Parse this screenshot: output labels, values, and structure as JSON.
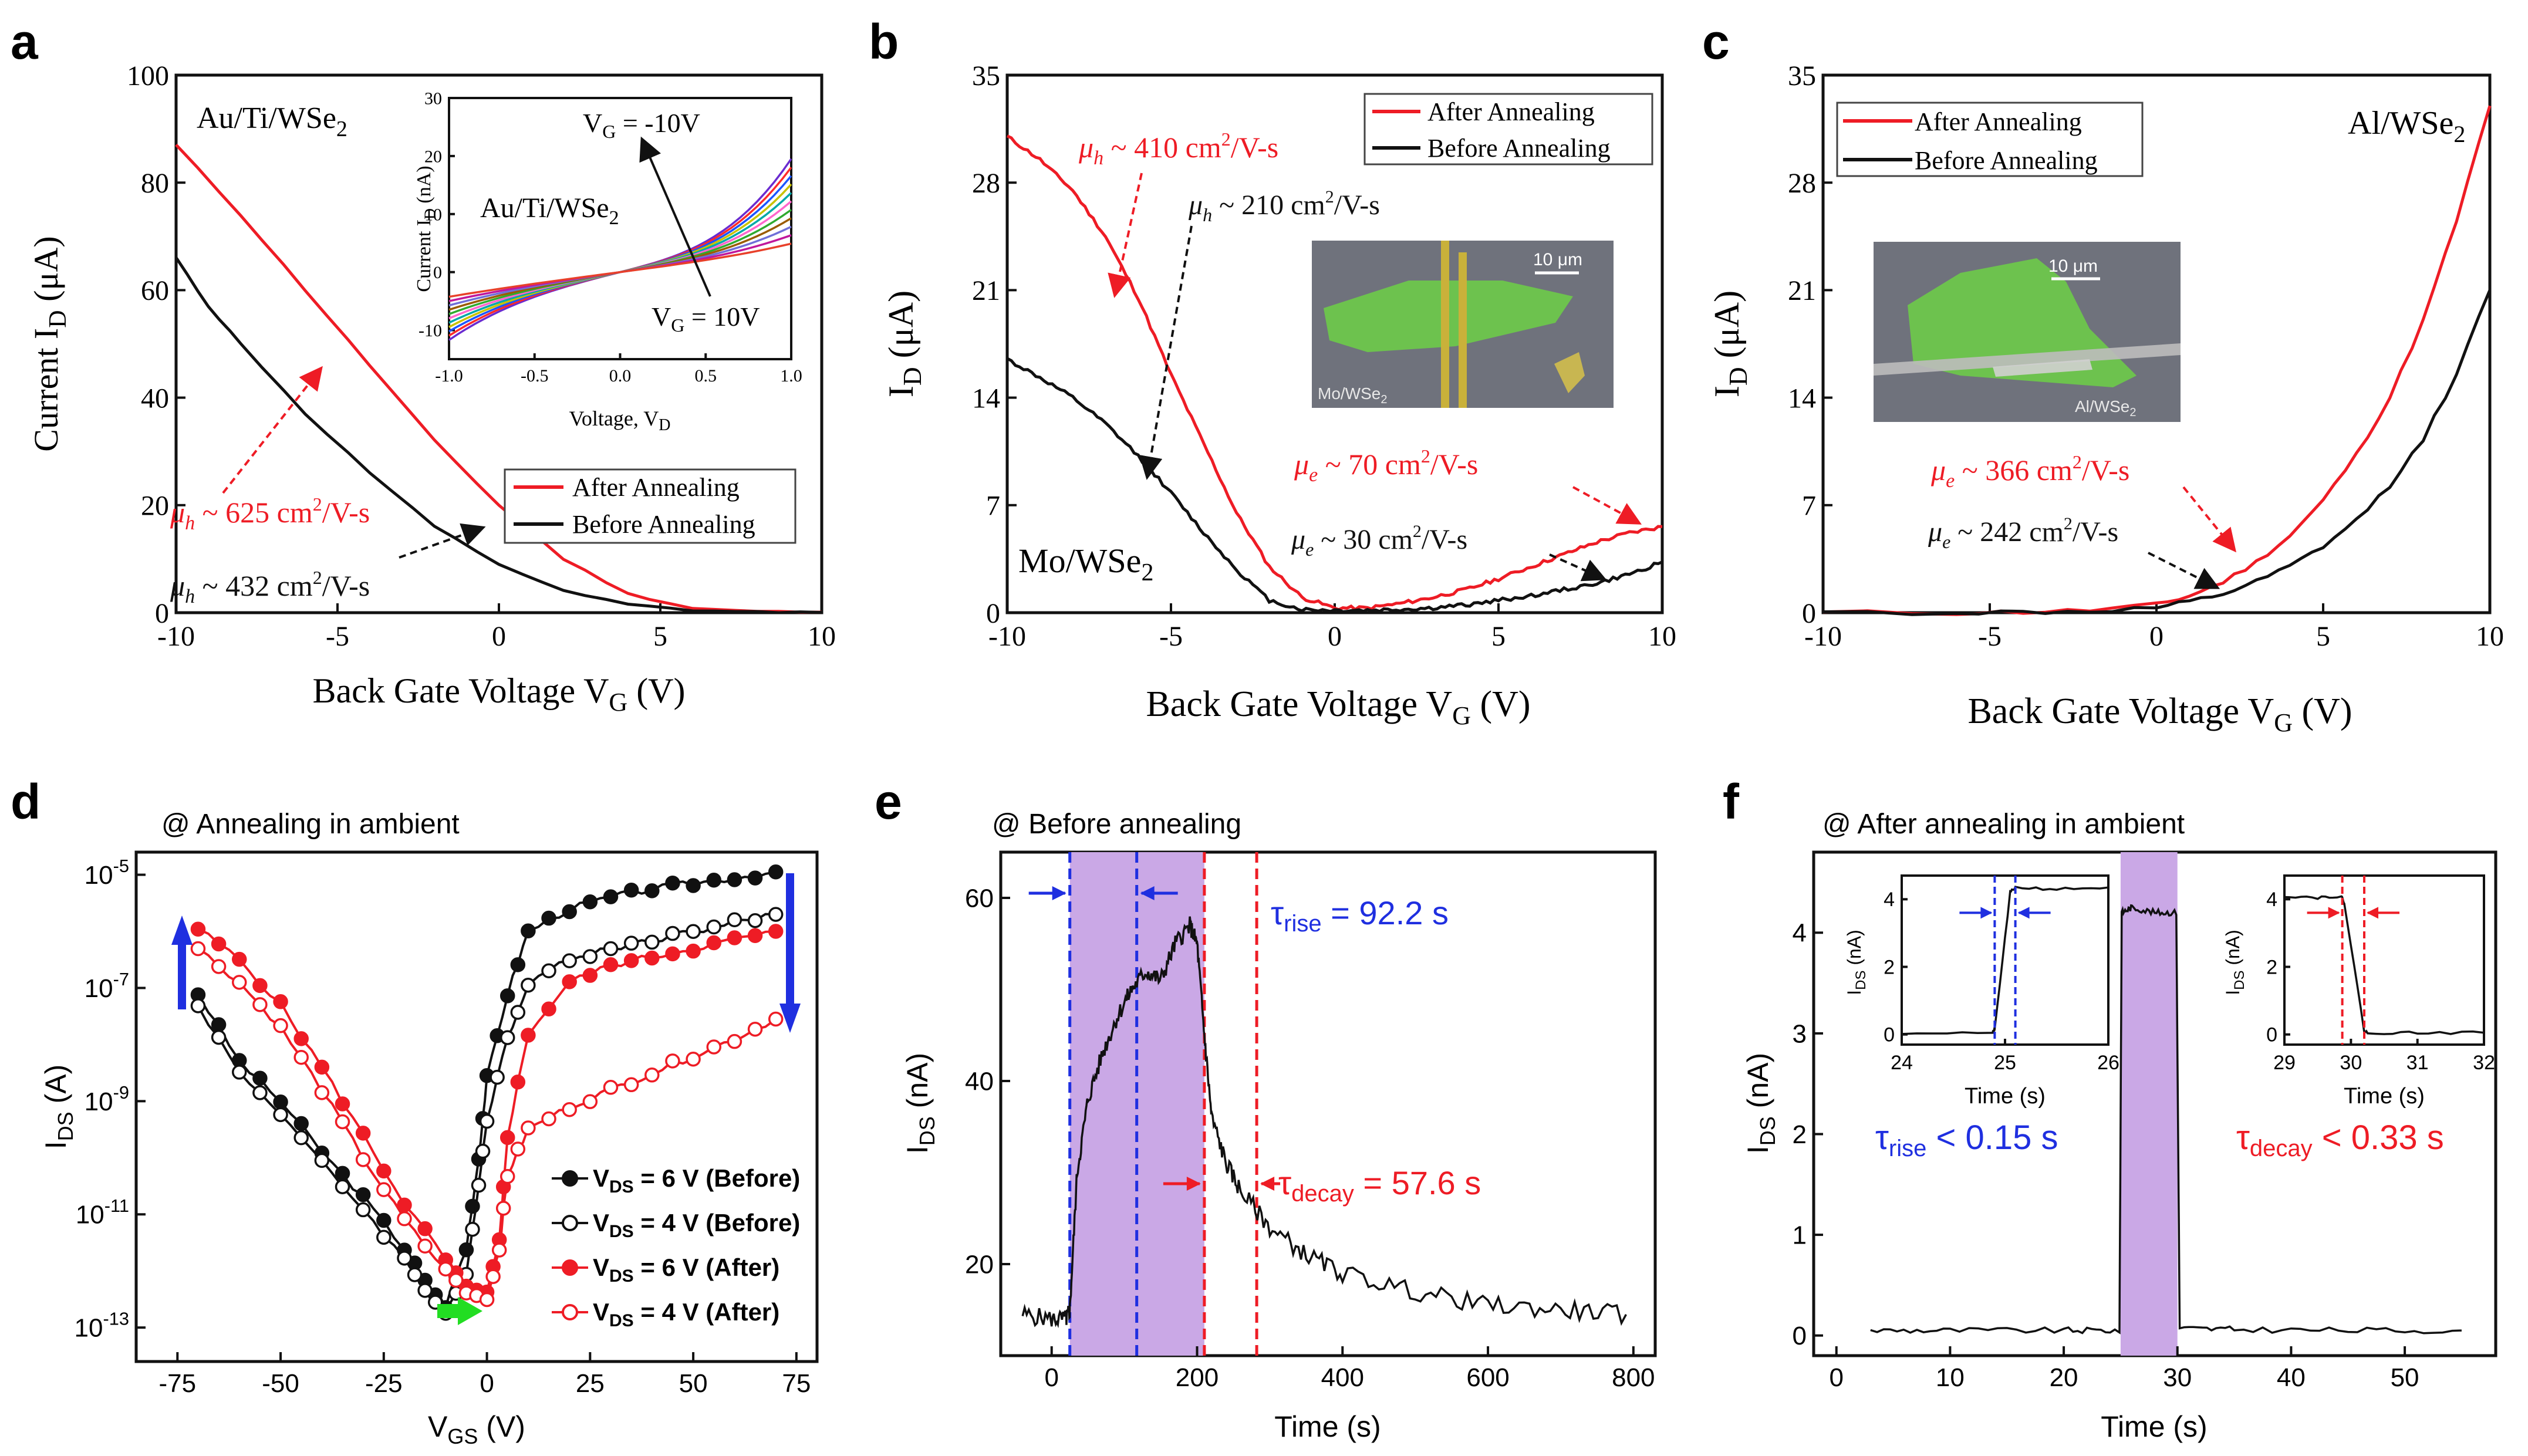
{
  "figure_caption": "",
  "colors": {
    "red": "#ee1c25",
    "black": "#111111",
    "blue": "#1f2fe0",
    "green": "#22dd22",
    "shade": "#caa8e6",
    "micro_bg": "#6f727c",
    "flake": "#6cc94a",
    "electrode": "#c9b13a",
    "electrode_al": "#bdbdbd"
  },
  "panels": {
    "a": {
      "letter": "a",
      "label_material": "Au/Ti/WSe",
      "label_sub": "2",
      "ylabel_main": "Current I",
      "ylabel_sub": "D",
      "ylabel_unit": " (μA)",
      "xlabel_main": "Back Gate Voltage V",
      "xlabel_sub": "G",
      "xlabel_unit": " (V)",
      "legend": [
        "After Annealing",
        "Before Annealing"
      ],
      "mu_after": "μ",
      "mu_after_sub": "h",
      "mu_after_val": " ~ 625 cm",
      "mu_after_sup": "2",
      "mu_after_end": "/V-s",
      "mu_before": "μ",
      "mu_before_sub": "h",
      "mu_before_val": " ~ 432 cm",
      "mu_before_sup": "2",
      "mu_before_end": "/V-s",
      "inset": {
        "ylabel": "Current I",
        "ylabel_sub": "D",
        "ylabel_unit": " (nA)",
        "xlabel": "Voltage, V",
        "xlabel_sub": "D",
        "label_material": "Au/Ti/WSe",
        "label_sub": "2",
        "vg_top": "V",
        "vg_top_sub": "G",
        "vg_top_val": " = -10V",
        "vg_bot": "V",
        "vg_bot_sub": "G",
        "vg_bot_val": " = 10V"
      }
    },
    "b": {
      "letter": "b",
      "label_material": "Mo/WSe",
      "label_sub": "2",
      "ylabel_main": "I",
      "ylabel_sub": "D",
      "ylabel_unit": " (μA)",
      "xlabel_main": "Back Gate Voltage V",
      "xlabel_sub": "G",
      "xlabel_unit": " (V)",
      "legend": [
        "After Annealing",
        "Before Annealing"
      ],
      "mu_h_after": "μ",
      "mu_h_after_sub": "h",
      "mu_h_after_val": " ~ 410 cm",
      "mu_h_after_sup": "2",
      "mu_h_after_end": "/V-s",
      "mu_h_before": "μ",
      "mu_h_before_sub": "h",
      "mu_h_before_val": " ~ 210 cm",
      "mu_h_before_sup": "2",
      "mu_h_before_end": "/V-s",
      "mu_e_after": "μ",
      "mu_e_after_sub": "e",
      "mu_e_after_val": " ~ 70 cm",
      "mu_e_after_sup": "2",
      "mu_e_after_end": "/V-s",
      "mu_e_before": "μ",
      "mu_e_before_sub": "e",
      "mu_e_before_val": " ~ 30 cm",
      "mu_e_before_sup": "2",
      "mu_e_before_end": "/V-s",
      "micro_scale": "10 μm",
      "micro_label": "Mo/WSe",
      "micro_label_sub": "2"
    },
    "c": {
      "letter": "c",
      "label_material": "Al/WSe",
      "label_sub": "2",
      "ylabel_main": "I",
      "ylabel_sub": "D",
      "ylabel_unit": " (μA)",
      "xlabel_main": "Back Gate Voltage V",
      "xlabel_sub": "G",
      "xlabel_unit": " (V)",
      "legend": [
        "After Annealing",
        "Before Annealing"
      ],
      "mu_after": "μ",
      "mu_after_sub": "e",
      "mu_after_val": " ~ 366 cm",
      "mu_after_sup": "2",
      "mu_after_end": "/V-s",
      "mu_before": "μ",
      "mu_before_sub": "e",
      "mu_before_val": " ~ 242 cm",
      "mu_before_sup": "2",
      "mu_before_end": "/V-s",
      "micro_scale": "10 μm",
      "micro_label": "Al/WSe",
      "micro_label_sub": "2"
    },
    "d": {
      "letter": "d",
      "title": "@ Annealing in ambient",
      "ylabel_main": "I",
      "ylabel_sub": "DS",
      "ylabel_unit": " (A)",
      "xlabel_main": "V",
      "xlabel_sub": "GS",
      "xlabel_unit": " (V)",
      "legend": [
        {
          "pre": "V",
          "sub": "DS",
          "post": " = 6 V (Before)"
        },
        {
          "pre": "V",
          "sub": "DS",
          "post": " = 4 V (Before)"
        },
        {
          "pre": "V",
          "sub": "DS",
          "post": " = 6 V (After)"
        },
        {
          "pre": "V",
          "sub": "DS",
          "post": " = 4 V (After)"
        }
      ]
    },
    "e": {
      "letter": "e",
      "title": "@ Before annealing",
      "ylabel_main": "I",
      "ylabel_sub": "DS",
      "ylabel_unit": " (nA)",
      "xlabel": "Time (s)",
      "tau_rise": "τ",
      "tau_rise_sub": "rise",
      "tau_rise_val": " = 92.2 s",
      "tau_decay": "τ",
      "tau_decay_sub": "decay",
      "tau_decay_val": " = 57.6 s"
    },
    "f": {
      "letter": "f",
      "title": "@ After annealing in ambient",
      "ylabel_main": "I",
      "ylabel_sub": "DS",
      "ylabel_unit": " (nA)",
      "xlabel": "Time (s)",
      "tau_rise": "τ",
      "tau_rise_sub": "rise",
      "tau_rise_val": " < 0.15 s",
      "tau_decay": "τ",
      "tau_decay_sub": "decay",
      "tau_decay_val": " < 0.33 s",
      "inset_ylabel_main": "I",
      "inset_ylabel_sub": "DS",
      "inset_ylabel_unit": " (nA)",
      "inset_xlabel": "Time (s)"
    }
  },
  "chart_data": [
    {
      "id": "a",
      "type": "line",
      "title": "Au/Ti/WSe2",
      "xlabel": "Back Gate Voltage VG (V)",
      "ylabel": "Current ID (μA)",
      "xlim": [
        -10,
        10
      ],
      "ylim": [
        0,
        100
      ],
      "xticks": [
        -10,
        -5,
        0,
        5,
        10
      ],
      "yticks": [
        0,
        20,
        40,
        60,
        80,
        100
      ],
      "series": [
        {
          "name": "After Annealing",
          "color": "red",
          "x": [
            -10,
            -8,
            -6,
            -4,
            -2,
            0,
            2,
            4,
            6,
            8,
            10
          ],
          "y": [
            87,
            74,
            60,
            46,
            32,
            20,
            10,
            3.5,
            0.8,
            0.2,
            0.1
          ]
        },
        {
          "name": "Before Annealing",
          "color": "black",
          "x": [
            -10,
            -9,
            -8,
            -6,
            -4,
            -2,
            0,
            2,
            4,
            6,
            8,
            10
          ],
          "y": [
            66,
            57,
            50,
            37,
            26,
            16,
            9,
            4,
            1.5,
            0.4,
            0.1,
            0.05
          ]
        }
      ]
    },
    {
      "id": "a_inset",
      "type": "line",
      "xlabel": "Voltage, VD",
      "ylabel": "Current ID (nA)",
      "xlim": [
        -1,
        1
      ],
      "ylim": [
        -15,
        30
      ],
      "xticks": [
        -1.0,
        -0.5,
        0.0,
        0.5,
        1.0
      ],
      "yticks": [
        -10,
        0,
        10,
        20,
        30
      ],
      "vg_values": [
        -10,
        -8,
        -6,
        -4,
        -2,
        0,
        2,
        4,
        6,
        8,
        10
      ],
      "series_colors": [
        "#6a2bd0",
        "#ff2a2a",
        "#1b55ff",
        "#c8c200",
        "#00a8a8",
        "#ff66cc",
        "#2faa2f",
        "#9a5b00",
        "#6f6fd8",
        "#c0179b",
        "#e8402a"
      ]
    },
    {
      "id": "b",
      "type": "line",
      "title": "Mo/WSe2",
      "xlabel": "Back Gate Voltage VG (V)",
      "ylabel": "ID (μA)",
      "xlim": [
        -10,
        10
      ],
      "ylim": [
        0,
        35
      ],
      "xticks": [
        -10,
        -5,
        0,
        5,
        10
      ],
      "yticks": [
        0,
        7,
        14,
        21,
        28,
        35
      ],
      "series": [
        {
          "name": "After Annealing",
          "color": "red",
          "x": [
            -10,
            -9,
            -8,
            -7,
            -6,
            -5,
            -4,
            -3,
            -2,
            -1,
            0,
            1,
            2,
            3,
            4,
            5,
            6,
            7,
            8,
            9,
            10
          ],
          "y": [
            31,
            29.5,
            27.5,
            24.5,
            20.5,
            15.5,
            11,
            6.5,
            3,
            1,
            0.3,
            0.3,
            0.6,
            1,
            1.5,
            2.2,
            3,
            3.8,
            4.6,
            5.2,
            5.6
          ]
        },
        {
          "name": "Before Annealing",
          "color": "black",
          "x": [
            -10,
            -9,
            -8,
            -7,
            -6,
            -5,
            -4,
            -3,
            -2,
            -1,
            0,
            1,
            2,
            3,
            4,
            5,
            6,
            7,
            8,
            9,
            10
          ],
          "y": [
            16.5,
            15.3,
            14,
            12.3,
            10.2,
            7.8,
            5.2,
            2.8,
            0.8,
            0.2,
            0.15,
            0.15,
            0.2,
            0.3,
            0.5,
            0.8,
            1.1,
            1.5,
            1.9,
            2.5,
            3.3
          ]
        }
      ]
    },
    {
      "id": "c",
      "type": "line",
      "title": "Al/WSe2",
      "xlabel": "Back Gate Voltage VG (V)",
      "ylabel": "ID (μA)",
      "xlim": [
        -10,
        10
      ],
      "ylim": [
        0,
        35
      ],
      "xticks": [
        -10,
        -5,
        0,
        5,
        10
      ],
      "yticks": [
        0,
        7,
        14,
        21,
        28,
        35
      ],
      "series": [
        {
          "name": "After Annealing",
          "color": "red",
          "x": [
            -10,
            -6,
            -4,
            -2,
            0,
            1,
            2,
            3,
            4,
            5,
            6,
            7,
            8,
            9,
            10
          ],
          "y": [
            0,
            0,
            0.05,
            0.15,
            0.5,
            1.1,
            2,
            3.3,
            5,
            7.3,
            10.3,
            14,
            19,
            25.5,
            33
          ]
        },
        {
          "name": "Before Annealing",
          "color": "black",
          "x": [
            -10,
            -6,
            -4,
            -2,
            0,
            1,
            2,
            3,
            4,
            5,
            6,
            7,
            8,
            9,
            10
          ],
          "y": [
            0,
            0,
            0.02,
            0.08,
            0.3,
            0.7,
            1.2,
            2,
            3,
            4.3,
            6,
            8.3,
            11.3,
            15.5,
            21
          ]
        }
      ]
    },
    {
      "id": "d",
      "type": "line",
      "title": "@ Annealing in ambient",
      "xlabel": "VGS (V)",
      "ylabel": "IDS (A)",
      "yscale": "log",
      "xlim": [
        -85,
        80
      ],
      "ylim_log10": [
        -13.6,
        -4.6
      ],
      "xticks": [
        -75,
        -50,
        -25,
        0,
        25,
        50,
        75
      ],
      "yticks_log10": [
        -13,
        -11,
        -9,
        -7,
        -5
      ],
      "series": [
        {
          "name": "VDS = 6 V (Before)",
          "color": "black",
          "marker": "filled",
          "x": [
            -70,
            -60,
            -50,
            -40,
            -30,
            -20,
            -15,
            -10,
            -5,
            -2,
            0,
            5,
            10,
            20,
            30,
            40,
            50,
            60,
            70
          ],
          "log10y": [
            -7.1,
            -8.3,
            -9.0,
            -9.9,
            -10.7,
            -11.6,
            -12.2,
            -12.6,
            -11.6,
            -10.0,
            -8.6,
            -7.1,
            -6.0,
            -5.6,
            -5.4,
            -5.25,
            -5.15,
            -5.05,
            -4.95
          ]
        },
        {
          "name": "VDS = 4 V (Before)",
          "color": "black",
          "marker": "open",
          "x": [
            -70,
            -60,
            -50,
            -40,
            -30,
            -20,
            -15,
            -10,
            -5,
            -2,
            0,
            5,
            10,
            20,
            30,
            40,
            50,
            60,
            70
          ],
          "log10y": [
            -7.3,
            -8.5,
            -9.2,
            -10.1,
            -10.9,
            -11.8,
            -12.3,
            -12.8,
            -12.0,
            -10.5,
            -9.3,
            -7.9,
            -6.9,
            -6.5,
            -6.3,
            -6.15,
            -6.0,
            -5.85,
            -5.7
          ]
        },
        {
          "name": "VDS = 6 V (After)",
          "color": "red",
          "marker": "filled",
          "x": [
            -70,
            -60,
            -50,
            -40,
            -30,
            -20,
            -10,
            -5,
            0,
            3,
            5,
            10,
            20,
            30,
            40,
            50,
            60,
            70
          ],
          "log10y": [
            -5.95,
            -6.5,
            -7.3,
            -8.4,
            -9.6,
            -10.8,
            -11.8,
            -12.3,
            -12.4,
            -11.5,
            -9.6,
            -7.8,
            -6.9,
            -6.6,
            -6.45,
            -6.3,
            -6.15,
            -6.0
          ]
        },
        {
          "name": "VDS = 4 V (After)",
          "color": "red",
          "marker": "open",
          "x": [
            -70,
            -60,
            -50,
            -40,
            -30,
            -20,
            -10,
            -5,
            0,
            3,
            5,
            10,
            20,
            30,
            40,
            50,
            60,
            70
          ],
          "log10y": [
            -6.3,
            -6.9,
            -7.7,
            -8.8,
            -10.0,
            -11.1,
            -12.0,
            -12.4,
            -12.5,
            -11.6,
            -10.3,
            -9.5,
            -9.1,
            -8.8,
            -8.5,
            -8.2,
            -7.9,
            -7.55
          ]
        }
      ]
    },
    {
      "id": "e",
      "type": "line",
      "title": "@ Before annealing",
      "xlabel": "Time (s)",
      "ylabel": "IDS (nA)",
      "xlim": [
        -70,
        830
      ],
      "ylim": [
        10,
        65
      ],
      "xticks": [
        0,
        200,
        400,
        600,
        800
      ],
      "yticks": [
        20,
        40,
        60
      ],
      "illumination": [
        25,
        210
      ],
      "markers_blue": [
        25,
        117
      ],
      "markers_red": [
        210,
        282
      ],
      "series": [
        {
          "name": "IDS",
          "color": "black",
          "x": [
            -40,
            0,
            20,
            25,
            35,
            50,
            70,
            90,
            110,
            130,
            150,
            170,
            190,
            200,
            210,
            220,
            240,
            260,
            300,
            350,
            400,
            500,
            600,
            700,
            790
          ],
          "y": [
            14.5,
            14,
            14,
            15,
            30,
            38,
            43,
            47,
            50,
            52,
            51,
            55,
            57,
            55,
            45,
            36,
            31,
            28,
            24,
            21,
            19,
            17,
            15.5,
            15,
            14.5
          ]
        }
      ]
    },
    {
      "id": "f",
      "type": "line",
      "title": "@ After annealing in ambient",
      "xlabel": "Time (s)",
      "ylabel": "IDS (nA)",
      "xlim": [
        -2,
        58
      ],
      "ylim": [
        -0.2,
        4.8
      ],
      "xticks": [
        0,
        10,
        20,
        30,
        40,
        50
      ],
      "yticks": [
        0,
        1,
        2,
        3,
        4
      ],
      "illumination": [
        25,
        30
      ],
      "series": [
        {
          "name": "IDS",
          "color": "black",
          "x": [
            3,
            10,
            20,
            24.9,
            25.1,
            26,
            28,
            29.9,
            30.2,
            35,
            45,
            55
          ],
          "y": [
            0.05,
            0.05,
            0.05,
            0.05,
            4.2,
            4.25,
            4.2,
            4.2,
            0.07,
            0.06,
            0.05,
            0.05
          ]
        }
      ]
    },
    {
      "id": "f_inset_rise",
      "type": "line",
      "xlabel": "Time (s)",
      "ylabel": "IDS (nA)",
      "xlim": [
        24,
        26
      ],
      "ylim": [
        -0.3,
        4.7
      ],
      "xticks": [
        24,
        25,
        26
      ],
      "yticks": [
        0,
        2,
        4
      ],
      "markers_blue": [
        24.9,
        25.1
      ],
      "series": [
        {
          "name": "IDS",
          "color": "black",
          "x": [
            24,
            24.88,
            24.9,
            25.05,
            25.1,
            25.5,
            26
          ],
          "y": [
            0.05,
            0.05,
            0.15,
            4.2,
            4.35,
            4.3,
            4.35
          ]
        }
      ]
    },
    {
      "id": "f_inset_decay",
      "type": "line",
      "xlabel": "Time (s)",
      "ylabel": "IDS (nA)",
      "xlim": [
        29,
        32
      ],
      "ylim": [
        -0.3,
        4.7
      ],
      "xticks": [
        29,
        30,
        31,
        32
      ],
      "yticks": [
        0,
        2,
        4
      ],
      "markers_red": [
        29.87,
        30.2
      ],
      "series": [
        {
          "name": "IDS",
          "color": "black",
          "x": [
            29,
            29.5,
            29.85,
            29.9,
            30.2,
            30.25,
            31,
            32
          ],
          "y": [
            4.1,
            4.05,
            4.1,
            3.9,
            0.1,
            0.05,
            0.05,
            0.05
          ]
        }
      ]
    }
  ]
}
